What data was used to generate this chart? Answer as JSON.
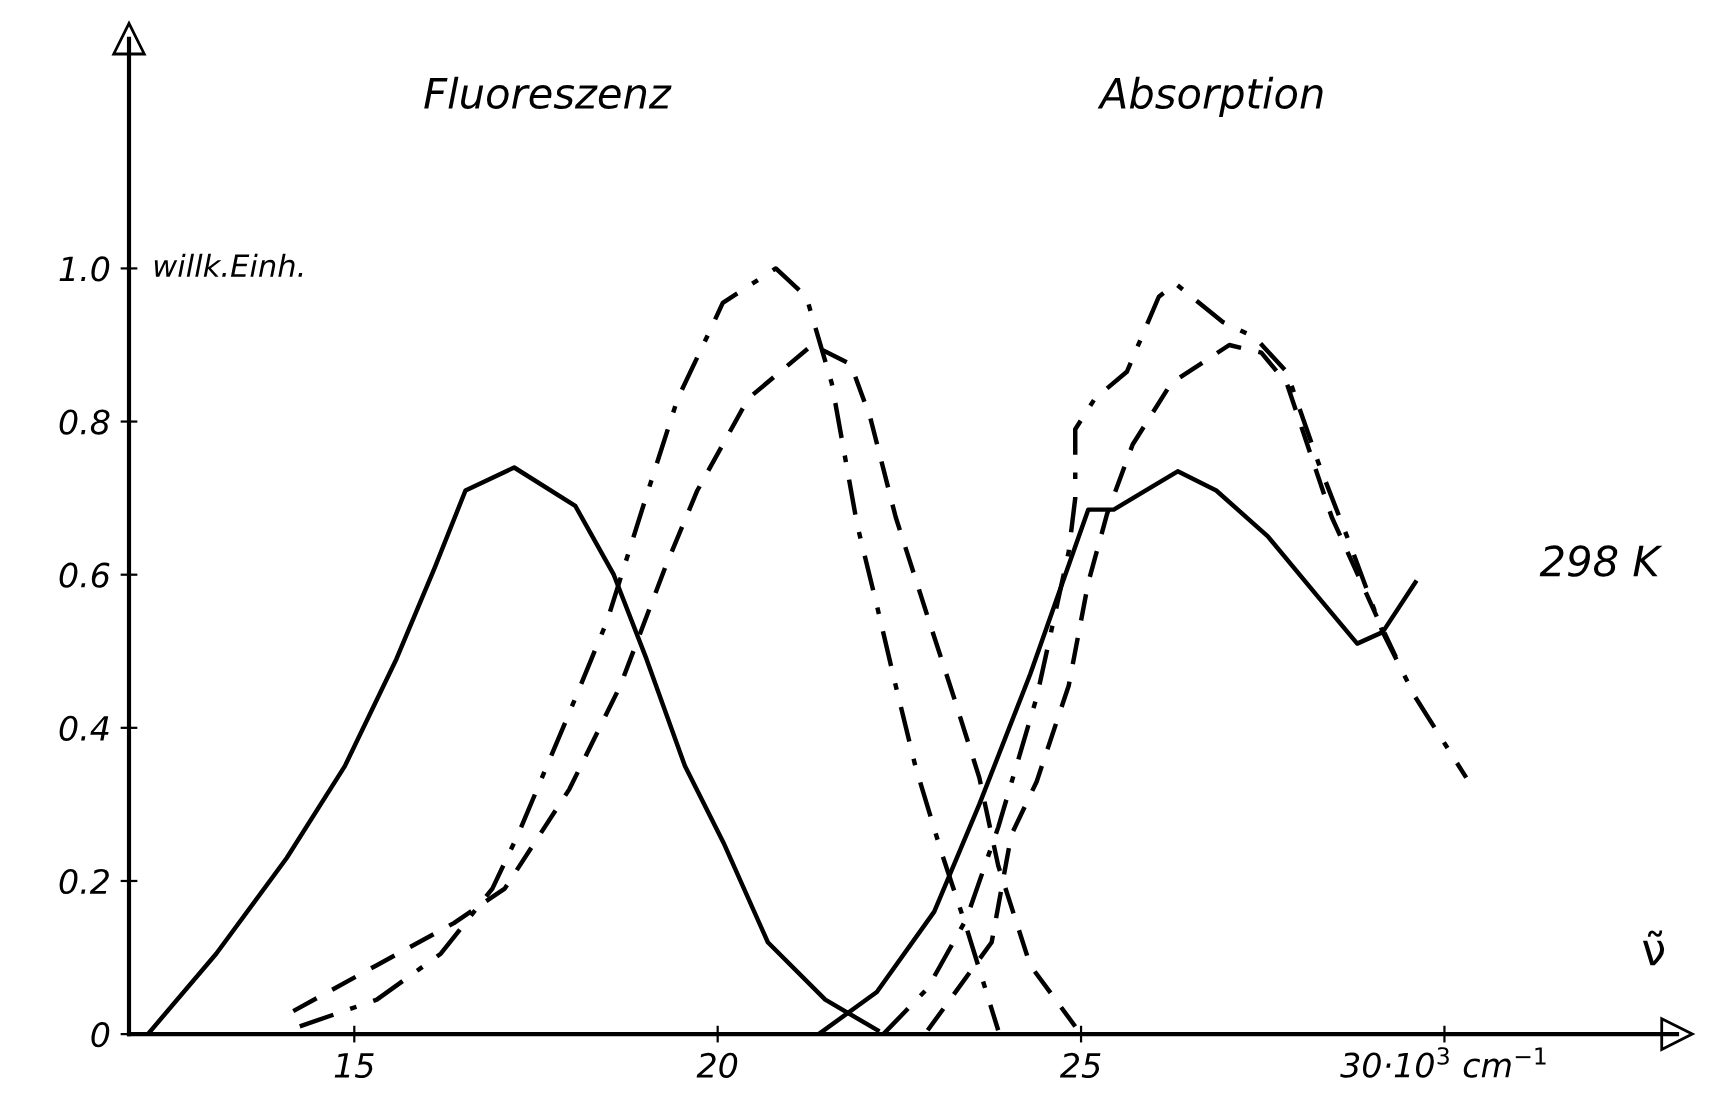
{
  "chart_data": {
    "type": "line",
    "xlabel": "ν̃",
    "ylabel": "willk.Einh.",
    "xlim": [
      11.9,
      33.2
    ],
    "ylim": [
      0,
      1.3
    ],
    "xticks": [
      15,
      20,
      25,
      {
        "value": 30,
        "label": "30·10$^{3}$ cm$^{−1}$"
      }
    ],
    "yticks": [
      0,
      0.2,
      0.4,
      0.6,
      0.8,
      {
        "value": 1,
        "label": "1.0"
      }
    ],
    "annotations": [
      "Fluoreszenz",
      "Absorption",
      "298 K"
    ],
    "grid": false,
    "legend": false,
    "marker": "none",
    "series": [
      {
        "color": "#000000",
        "line_style": "solid",
        "x": [
          12.16,
          13.1,
          14.07,
          14.87,
          15.58,
          16.11,
          16.53,
          17.2,
          18.04,
          18.57,
          19.02,
          19.55,
          20.08,
          20.69,
          21.48,
          22.2
        ],
        "values": [
          0,
          0.105,
          0.23,
          0.35,
          0.49,
          0.61,
          0.71,
          0.74,
          0.69,
          0.6,
          0.49,
          0.35,
          0.25,
          0.12,
          0.045,
          0.005
        ]
      },
      {
        "color": "#000000",
        "line_style": "dashdot",
        "x": [
          14.25,
          15.31,
          16.19,
          16.9,
          17.25,
          17.96,
          18.48,
          19.01,
          19.45,
          19.9,
          20.07,
          20.8,
          21.22,
          21.57,
          21.92,
          22.19,
          22.45,
          22.72,
          23.07,
          23.42,
          23.86
        ],
        "values": [
          0.01,
          0.045,
          0.105,
          0.19,
          0.26,
          0.42,
          0.54,
          0.7,
          0.83,
          0.92,
          0.955,
          1.0,
          0.963,
          0.85,
          0.665,
          0.56,
          0.455,
          0.35,
          0.24,
          0.14,
          0.005
        ]
      },
      {
        "color": "#000000",
        "line_style": "dashed",
        "x": [
          14.16,
          15.31,
          16.37,
          17.07,
          17.96,
          18.66,
          19.28,
          19.72,
          20.42,
          21.3,
          21.83,
          22.1,
          22.45,
          22.89,
          23.25,
          23.6,
          23.86,
          24.3,
          24.92
        ],
        "values": [
          0.03,
          0.09,
          0.145,
          0.19,
          0.32,
          0.455,
          0.61,
          0.71,
          0.83,
          0.9,
          0.875,
          0.805,
          0.675,
          0.545,
          0.44,
          0.335,
          0.22,
          0.09,
          0.01
        ]
      },
      {
        "color": "#000000",
        "line_style": "solid",
        "x": [
          21.39,
          22.19,
          22.98,
          23.6,
          24.3,
          25.1,
          25.45,
          25.8,
          26.33,
          26.86,
          27.57,
          28.27,
          28.8,
          29.15,
          29.6
        ],
        "values": [
          0,
          0.055,
          0.16,
          0.3,
          0.47,
          0.685,
          0.685,
          0.705,
          0.735,
          0.71,
          0.65,
          0.57,
          0.51,
          0.525,
          0.59
        ]
      },
      {
        "color": "#000000",
        "line_style": "dashdot",
        "x": [
          22.28,
          22.89,
          23.42,
          23.86,
          24.39,
          24.83,
          24.92,
          24.92,
          25.19,
          25.63,
          26.07,
          26.3,
          26.95,
          27.39,
          27.83,
          28.27,
          28.7,
          29.15,
          29.6,
          30.3
        ],
        "values": [
          0,
          0.06,
          0.15,
          0.27,
          0.44,
          0.63,
          0.7,
          0.79,
          0.83,
          0.865,
          0.963,
          0.98,
          0.93,
          0.91,
          0.865,
          0.745,
          0.64,
          0.525,
          0.44,
          0.335
        ]
      },
      {
        "color": "#000000",
        "line_style": "dashed",
        "x": [
          22.89,
          23.77,
          24.04,
          24.39,
          24.83,
          25.1,
          25.36,
          25.71,
          26.24,
          27.04,
          27.48,
          27.83,
          28.45,
          29.07,
          29.42
        ],
        "values": [
          0.005,
          0.12,
          0.26,
          0.33,
          0.455,
          0.59,
          0.68,
          0.77,
          0.85,
          0.9,
          0.89,
          0.85,
          0.675,
          0.545,
          0.475
        ]
      }
    ]
  }
}
